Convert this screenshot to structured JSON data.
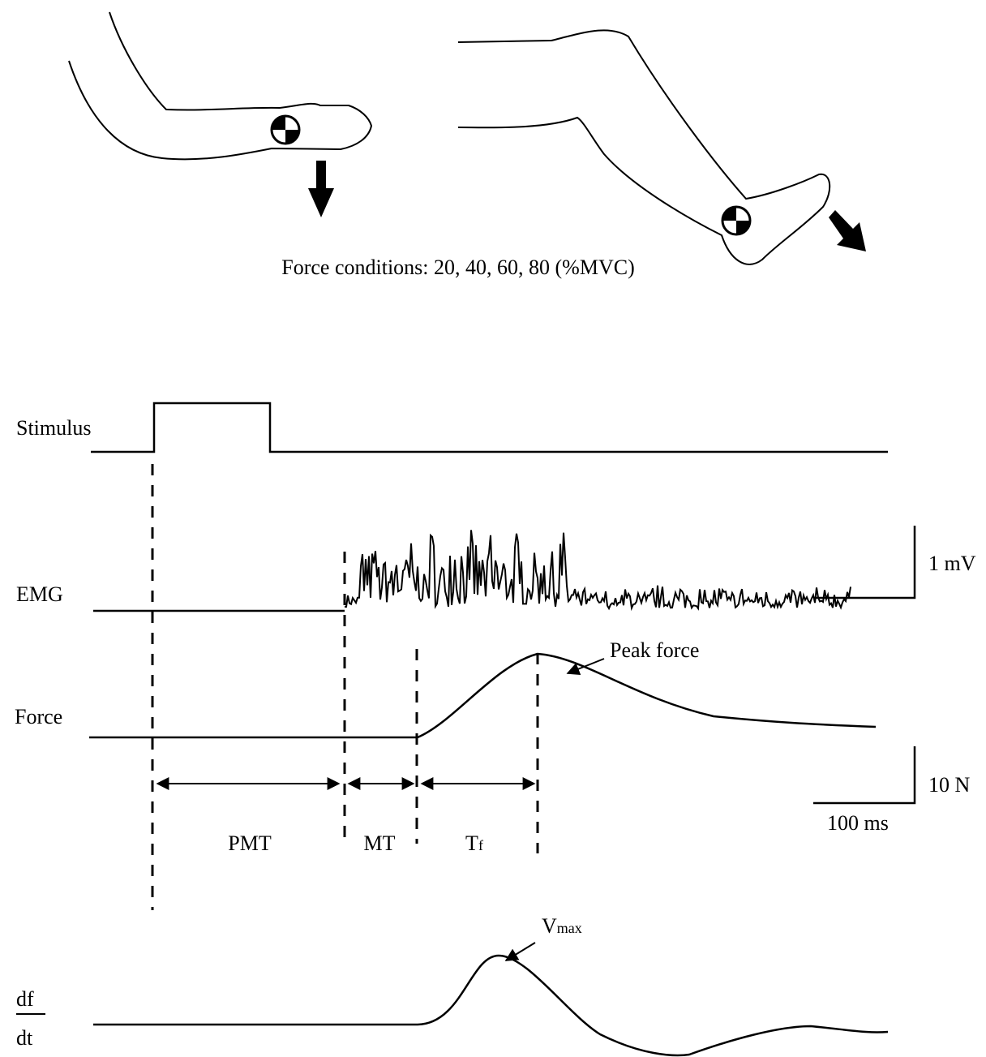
{
  "title": "Force conditions: 20, 40, 60, 80 (%MVC)",
  "traces": {
    "stimulus": "Stimulus",
    "emg": "EMG",
    "force": "Force",
    "derivative": {
      "numerator": "df",
      "denominator": "dt"
    }
  },
  "scale_bars": {
    "emg": "1 mV",
    "force": "10 N",
    "time": "100 ms"
  },
  "intervals": {
    "pmt": "PMT",
    "mt": "MT",
    "tf": {
      "label": "T",
      "subscript": "f"
    }
  },
  "annotations": {
    "peak_force": "Peak force",
    "vmax": {
      "label": "V",
      "subscript": "max"
    }
  }
}
